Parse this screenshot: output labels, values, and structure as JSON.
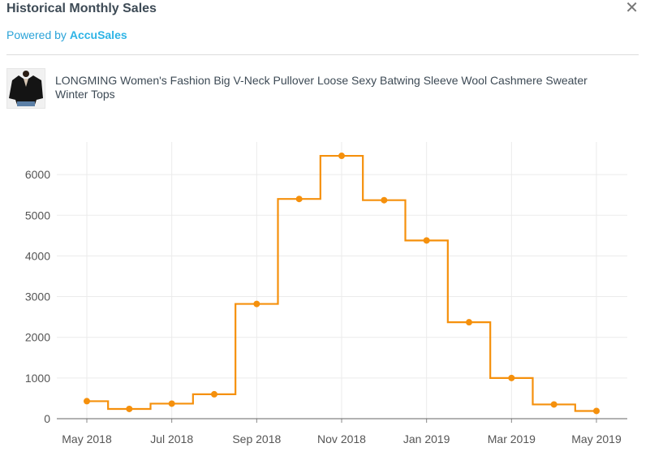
{
  "header": {
    "title": "Historical Monthly Sales",
    "close_icon": "close-icon",
    "powered_prefix": "Powered by",
    "powered_brand": "AccuSales"
  },
  "product": {
    "title": "LONGMING Women's Fashion Big V-Neck Pullover Loose Sexy Batwing Sleeve Wool Cashmere Sweater Winter Tops",
    "thumbnail_icon": "sweater-thumbnail"
  },
  "colors": {
    "line": "#f5900c",
    "grid": "#ebebeb",
    "axis": "#888888",
    "brand": "#2eb4e6",
    "title": "#3d4a55"
  },
  "chart_data": {
    "type": "line",
    "step": true,
    "title": "",
    "xlabel": "",
    "ylabel": "",
    "x": [
      "May 2018",
      "Jun 2018",
      "Jul 2018",
      "Aug 2018",
      "Sep 2018",
      "Oct 2018",
      "Nov 2018",
      "Dec 2018",
      "Jan 2019",
      "Feb 2019",
      "Mar 2019",
      "Apr 2019",
      "May 2019"
    ],
    "series": [
      {
        "values": [
          430,
          240,
          370,
          600,
          2820,
          5400,
          6460,
          5370,
          4380,
          2370,
          1000,
          350,
          190
        ]
      }
    ],
    "x_tick_labels": [
      "May 2018",
      "Jul 2018",
      "Sep 2018",
      "Nov 2018",
      "Jan 2019",
      "Mar 2019",
      "May 2019"
    ],
    "y_ticks": [
      0,
      1000,
      2000,
      3000,
      4000,
      5000,
      6000
    ],
    "ylim": [
      0,
      6800
    ],
    "grid": true
  }
}
